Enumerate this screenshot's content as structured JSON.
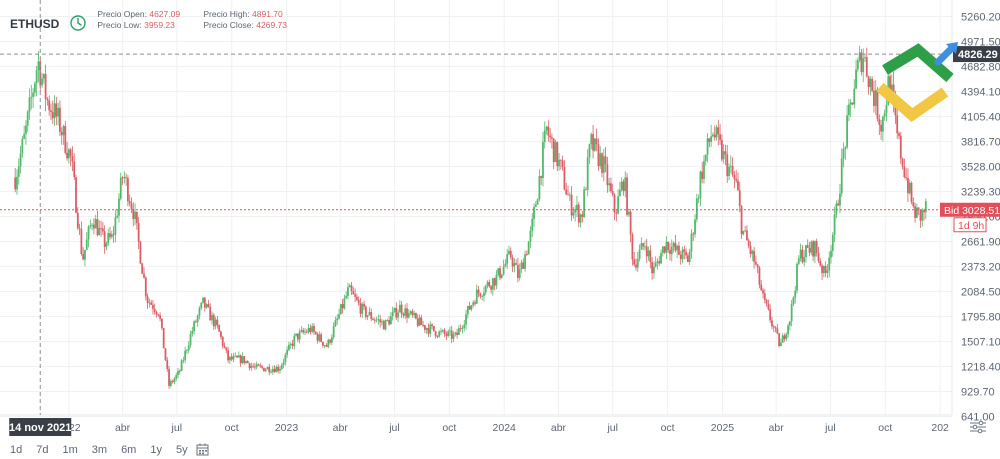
{
  "header": {
    "symbol": "ETHUSD",
    "open_label": "Precio Open:",
    "open_value": "4627.09",
    "high_label": "Precio High:",
    "high_value": "4891.70",
    "low_label": "Precio Low:",
    "low_value": "3959.23",
    "close_label": "Precio Close:",
    "close_value": "4269.73",
    "value_color": "#d95e66",
    "icon": "clock-icon"
  },
  "timeframes": [
    "1d",
    "7d",
    "1m",
    "3m",
    "6m",
    "1y",
    "5y"
  ],
  "toolbar_icons": [
    "calendar-icon",
    "settings-icon",
    "logo-icon"
  ],
  "crosshair": {
    "date_label": "14 nov 2021",
    "price_label": "4826.29"
  },
  "bid": {
    "label": "Bid",
    "value": "3028.51",
    "countdown": "1d 9h",
    "color": "#e14f5a"
  },
  "colors": {
    "up": "#53b86a",
    "down": "#d95e66",
    "logo_green": "#2e9e48",
    "logo_yellow": "#f2c744",
    "logo_blue": "#3d8fe0"
  },
  "chart_data": {
    "type": "candlestick",
    "ylim": [
      641.8,
      5370
    ],
    "y_ticks": [
      5260.2,
      4971.5,
      4682.8,
      4394.1,
      4105.4,
      3816.7,
      3528.0,
      3239.3,
      2950.6,
      2661.9,
      2373.2,
      2084.5,
      1795.8,
      1507.1,
      1218.4,
      929.7,
      641.0
    ],
    "y_tick_labels": [
      "5260.20",
      "4971.50",
      "4682.80",
      "4394.10",
      "4105.40",
      "3816.70",
      "3528.00",
      "3239.30",
      "2950.60",
      "2661.90",
      "2373.20",
      "2084.50",
      "1795.80",
      "1507.10",
      "1218.40",
      "929.70",
      "641.00"
    ],
    "x_range": [
      "2021-10-01",
      "2025-12-15"
    ],
    "x_ticks": [
      {
        "date": "2022-01-01",
        "label": "2022"
      },
      {
        "date": "2022-04-01",
        "label": "abr"
      },
      {
        "date": "2022-07-01",
        "label": "jul"
      },
      {
        "date": "2022-10-01",
        "label": "oct"
      },
      {
        "date": "2023-01-01",
        "label": "2023"
      },
      {
        "date": "2023-04-01",
        "label": "abr"
      },
      {
        "date": "2023-07-01",
        "label": "jul"
      },
      {
        "date": "2023-10-01",
        "label": "oct"
      },
      {
        "date": "2024-01-01",
        "label": "2024"
      },
      {
        "date": "2024-04-01",
        "label": "abr"
      },
      {
        "date": "2024-07-01",
        "label": "jul"
      },
      {
        "date": "2024-10-01",
        "label": "oct"
      },
      {
        "date": "2025-01-01",
        "label": "2025"
      },
      {
        "date": "2025-04-01",
        "label": "abr"
      },
      {
        "date": "2025-07-01",
        "label": "jul"
      },
      {
        "date": "2025-10-01",
        "label": "oct"
      },
      {
        "date": "2026-01-01",
        "label": "202"
      }
    ],
    "crosshair_date": "2021-11-14",
    "crosshair_price": 4826.29,
    "bid_price": 3028.51,
    "close_series": [
      {
        "date": "2021-10-03",
        "close": 3400
      },
      {
        "date": "2021-10-20",
        "close": 3900
      },
      {
        "date": "2021-11-10",
        "close": 4750
      },
      {
        "date": "2021-11-25",
        "close": 4300
      },
      {
        "date": "2021-12-15",
        "close": 4050
      },
      {
        "date": "2022-01-05",
        "close": 3600
      },
      {
        "date": "2022-01-24",
        "close": 2450
      },
      {
        "date": "2022-02-10",
        "close": 2950
      },
      {
        "date": "2022-03-01",
        "close": 2650
      },
      {
        "date": "2022-03-15",
        "close": 2700
      },
      {
        "date": "2022-04-02",
        "close": 3450
      },
      {
        "date": "2022-04-20",
        "close": 3000
      },
      {
        "date": "2022-05-12",
        "close": 2000
      },
      {
        "date": "2022-06-01",
        "close": 1850
      },
      {
        "date": "2022-06-18",
        "close": 1000
      },
      {
        "date": "2022-07-05",
        "close": 1150
      },
      {
        "date": "2022-07-25",
        "close": 1600
      },
      {
        "date": "2022-08-14",
        "close": 1950
      },
      {
        "date": "2022-09-08",
        "close": 1650
      },
      {
        "date": "2022-09-25",
        "close": 1300
      },
      {
        "date": "2022-10-20",
        "close": 1300
      },
      {
        "date": "2022-11-09",
        "close": 1200
      },
      {
        "date": "2022-11-25",
        "close": 1200
      },
      {
        "date": "2022-12-20",
        "close": 1200
      },
      {
        "date": "2023-01-15",
        "close": 1550
      },
      {
        "date": "2023-02-10",
        "close": 1650
      },
      {
        "date": "2023-03-10",
        "close": 1450
      },
      {
        "date": "2023-04-15",
        "close": 2100
      },
      {
        "date": "2023-05-10",
        "close": 1850
      },
      {
        "date": "2023-06-15",
        "close": 1700
      },
      {
        "date": "2023-07-10",
        "close": 1900
      },
      {
        "date": "2023-08-15",
        "close": 1700
      },
      {
        "date": "2023-09-15",
        "close": 1600
      },
      {
        "date": "2023-10-12",
        "close": 1560
      },
      {
        "date": "2023-10-28",
        "close": 1800
      },
      {
        "date": "2023-11-15",
        "close": 2050
      },
      {
        "date": "2023-12-20",
        "close": 2250
      },
      {
        "date": "2024-01-12",
        "close": 2500
      },
      {
        "date": "2024-01-25",
        "close": 2250
      },
      {
        "date": "2024-02-15",
        "close": 2750
      },
      {
        "date": "2024-03-12",
        "close": 3950
      },
      {
        "date": "2024-04-05",
        "close": 3500
      },
      {
        "date": "2024-04-20",
        "close": 3100
      },
      {
        "date": "2024-05-10",
        "close": 2950
      },
      {
        "date": "2024-05-25",
        "close": 3800
      },
      {
        "date": "2024-06-15",
        "close": 3550
      },
      {
        "date": "2024-07-05",
        "close": 3000
      },
      {
        "date": "2024-07-20",
        "close": 3400
      },
      {
        "date": "2024-08-05",
        "close": 2400
      },
      {
        "date": "2024-08-25",
        "close": 2650
      },
      {
        "date": "2024-09-06",
        "close": 2300
      },
      {
        "date": "2024-09-28",
        "close": 2650
      },
      {
        "date": "2024-10-15",
        "close": 2550
      },
      {
        "date": "2024-11-05",
        "close": 2450
      },
      {
        "date": "2024-11-25",
        "close": 3400
      },
      {
        "date": "2024-12-15",
        "close": 3950
      },
      {
        "date": "2025-01-05",
        "close": 3600
      },
      {
        "date": "2025-01-25",
        "close": 3300
      },
      {
        "date": "2025-02-03",
        "close": 2800
      },
      {
        "date": "2025-02-25",
        "close": 2400
      },
      {
        "date": "2025-03-10",
        "close": 2000
      },
      {
        "date": "2025-04-08",
        "close": 1450
      },
      {
        "date": "2025-04-25",
        "close": 1800
      },
      {
        "date": "2025-05-10",
        "close": 2500
      },
      {
        "date": "2025-06-05",
        "close": 2600
      },
      {
        "date": "2025-06-22",
        "close": 2250
      },
      {
        "date": "2025-07-10",
        "close": 2950
      },
      {
        "date": "2025-07-25",
        "close": 3800
      },
      {
        "date": "2025-08-12",
        "close": 4550
      },
      {
        "date": "2025-08-24",
        "close": 4850
      },
      {
        "date": "2025-09-10",
        "close": 4400
      },
      {
        "date": "2025-09-25",
        "close": 4000
      },
      {
        "date": "2025-10-08",
        "close": 4550
      },
      {
        "date": "2025-10-20",
        "close": 3900
      },
      {
        "date": "2025-11-05",
        "close": 3400
      },
      {
        "date": "2025-11-18",
        "close": 3000
      },
      {
        "date": "2025-11-30",
        "close": 2950
      },
      {
        "date": "2025-12-08",
        "close": 3050
      }
    ]
  }
}
